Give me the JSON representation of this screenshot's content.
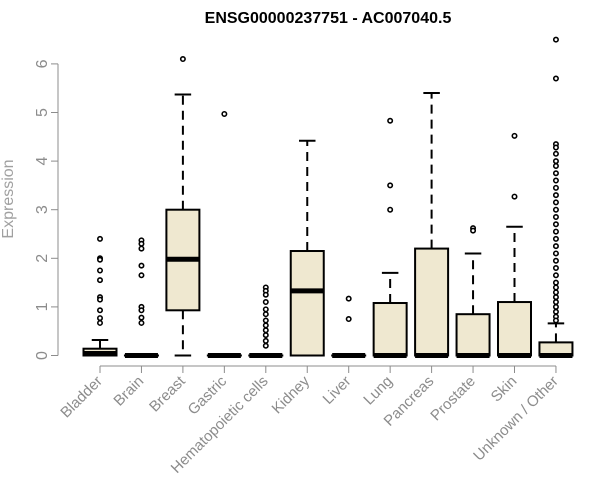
{
  "chart_data": {
    "type": "box",
    "title": "ENSG00000237751 - AC007040.5",
    "xlabel": "",
    "ylabel": "Expression",
    "ylim": [
      0,
      6.5
    ],
    "yticks": [
      0,
      1,
      2,
      3,
      4,
      5,
      6
    ],
    "colors": {
      "box_fill": "#efe8d0",
      "stroke": "#000000",
      "axis": "#8c8c8c"
    },
    "categories": [
      "Bladder",
      "Brain",
      "Breast",
      "Gastric",
      "Hematopoietic cells",
      "Kidney",
      "Liver",
      "Lung",
      "Pancreas",
      "Prostate",
      "Skin",
      "Unknown / Other"
    ],
    "boxes": [
      {
        "q1": 0.0,
        "median": 0.04,
        "q3": 0.14,
        "whisker_low": 0.0,
        "whisker_high": 0.32,
        "outliers": [
          2.4,
          2.0,
          1.97,
          1.75,
          1.55,
          1.2,
          1.15,
          0.93,
          0.77,
          0.67
        ]
      },
      {
        "q1": 0.0,
        "median": 0.0,
        "q3": 0.0,
        "whisker_low": 0.0,
        "whisker_high": 0.0,
        "outliers": [
          2.37,
          2.3,
          2.2,
          1.85,
          1.65,
          1.0,
          0.93,
          0.78,
          0.67
        ]
      },
      {
        "q1": 0.93,
        "median": 1.98,
        "q3": 3.0,
        "whisker_low": 0.0,
        "whisker_high": 5.37,
        "outliers": [
          6.1
        ]
      },
      {
        "q1": 0.0,
        "median": 0.0,
        "q3": 0.0,
        "whisker_low": 0.0,
        "whisker_high": 0.0,
        "outliers": [
          4.97
        ]
      },
      {
        "q1": 0.0,
        "median": 0.0,
        "q3": 0.0,
        "whisker_low": 0.0,
        "whisker_high": 0.0,
        "outliers": [
          1.4,
          1.33,
          1.25,
          1.1,
          0.95,
          0.85,
          0.72,
          0.62,
          0.52,
          0.42,
          0.3,
          0.2
        ]
      },
      {
        "q1": 0.0,
        "median": 1.33,
        "q3": 2.15,
        "whisker_low": 0.0,
        "whisker_high": 4.42,
        "outliers": []
      },
      {
        "q1": 0.0,
        "median": 0.0,
        "q3": 0.0,
        "whisker_low": 0.0,
        "whisker_high": 0.0,
        "outliers": [
          1.17,
          0.75
        ]
      },
      {
        "q1": 0.0,
        "median": 0.0,
        "q3": 1.08,
        "whisker_low": 0.0,
        "whisker_high": 1.7,
        "outliers": [
          4.83,
          3.5,
          3.0
        ]
      },
      {
        "q1": 0.0,
        "median": 0.0,
        "q3": 2.2,
        "whisker_low": 0.0,
        "whisker_high": 5.4,
        "outliers": []
      },
      {
        "q1": 0.0,
        "median": 0.0,
        "q3": 0.85,
        "whisker_low": 0.0,
        "whisker_high": 2.1,
        "outliers": [
          2.62,
          2.57
        ]
      },
      {
        "q1": 0.0,
        "median": 0.0,
        "q3": 1.1,
        "whisker_low": 0.0,
        "whisker_high": 2.65,
        "outliers": [
          4.52,
          3.27
        ]
      },
      {
        "q1": 0.0,
        "median": 0.0,
        "q3": 0.27,
        "whisker_low": 0.0,
        "whisker_high": 0.66,
        "outliers": [
          6.5,
          5.7,
          4.35,
          4.28,
          4.15,
          4.0,
          3.9,
          3.75,
          3.6,
          3.45,
          3.3,
          3.15,
          3.0,
          2.85,
          2.7,
          2.55,
          2.4,
          2.25,
          2.1,
          1.95,
          1.8,
          1.65,
          1.5,
          1.4,
          1.3,
          1.2,
          1.1,
          1.0,
          0.9,
          0.8,
          0.72
        ]
      }
    ]
  }
}
